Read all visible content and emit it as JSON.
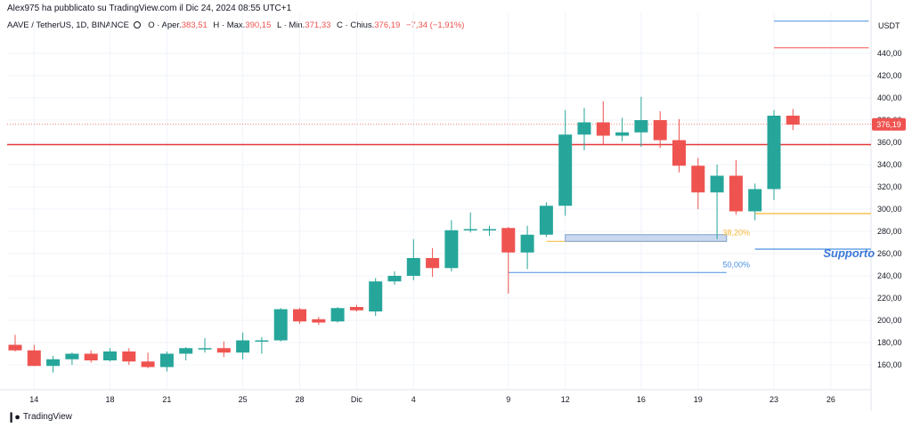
{
  "header": {
    "credit": "Alex975 ha pubblicato su TradingView.com il Dic 24, 2024 08:55 UTC+1",
    "symbol": "AAVE / TetherUS, 1D, BINANCE",
    "open_label": "O · Aper.",
    "open_value": "383,51",
    "high_label": "H · Max.",
    "high_value": "390,15",
    "low_label": "L · Min.",
    "low_value": "371,33",
    "close_label": "C · Chius.",
    "close_value": "376,19",
    "change_value": "−7,34 (−1,91%)"
  },
  "footer": {
    "brand": "TradingView",
    "logo_icon": "tradingview-logo-icon"
  },
  "colors": {
    "up": "#26a69a",
    "down": "#ef5350",
    "support_line": "#e53935",
    "fib382": "#f7b731",
    "fib50": "#4a90e2",
    "grid": "#f0f3fa"
  },
  "chart_data": {
    "type": "candlestick",
    "currency_label": "USDT",
    "ylim": [
      140,
      470
    ],
    "y_ticks": [
      {
        "v": 160,
        "label": "160,00"
      },
      {
        "v": 180,
        "label": "180,00"
      },
      {
        "v": 200,
        "label": "200,00"
      },
      {
        "v": 220,
        "label": "220,00"
      },
      {
        "v": 240,
        "label": "240,00"
      },
      {
        "v": 260,
        "label": "260,00"
      },
      {
        "v": 280,
        "label": "280,00"
      },
      {
        "v": 300,
        "label": "300,00"
      },
      {
        "v": 320,
        "label": "320,00"
      },
      {
        "v": 340,
        "label": "340,00"
      },
      {
        "v": 360,
        "label": "360,00"
      },
      {
        "v": 380,
        "label": "380,00"
      },
      {
        "v": 400,
        "label": "400,00"
      },
      {
        "v": 420,
        "label": "420,00"
      },
      {
        "v": 440,
        "label": "440,00"
      }
    ],
    "x_ticks": [
      {
        "i": 1,
        "label": "14"
      },
      {
        "i": 5,
        "label": "18"
      },
      {
        "i": 8,
        "label": "21"
      },
      {
        "i": 12,
        "label": "25"
      },
      {
        "i": 15,
        "label": "28"
      },
      {
        "i": 18,
        "label": "Dic"
      },
      {
        "i": 21,
        "label": "4"
      },
      {
        "i": 26,
        "label": "9"
      },
      {
        "i": 29,
        "label": "12"
      },
      {
        "i": 33,
        "label": "16"
      },
      {
        "i": 36,
        "label": "19"
      },
      {
        "i": 40,
        "label": "23"
      },
      {
        "i": 43,
        "label": "26"
      }
    ],
    "candles": [
      {
        "o": 178,
        "h": 187,
        "l": 172,
        "c": 173
      },
      {
        "o": 173,
        "h": 178,
        "l": 159,
        "c": 159
      },
      {
        "o": 159,
        "h": 168,
        "l": 153,
        "c": 165
      },
      {
        "o": 165,
        "h": 171,
        "l": 160,
        "c": 170
      },
      {
        "o": 170,
        "h": 173,
        "l": 162,
        "c": 164
      },
      {
        "o": 164,
        "h": 175,
        "l": 163,
        "c": 172
      },
      {
        "o": 172,
        "h": 175,
        "l": 160,
        "c": 163
      },
      {
        "o": 163,
        "h": 171,
        "l": 157,
        "c": 158
      },
      {
        "o": 158,
        "h": 172,
        "l": 154,
        "c": 170
      },
      {
        "o": 170,
        "h": 176,
        "l": 164,
        "c": 175
      },
      {
        "o": 175,
        "h": 184,
        "l": 171,
        "c": 175
      },
      {
        "o": 175,
        "h": 181,
        "l": 167,
        "c": 171
      },
      {
        "o": 171,
        "h": 189,
        "l": 165,
        "c": 182
      },
      {
        "o": 182,
        "h": 185,
        "l": 170,
        "c": 182
      },
      {
        "o": 182,
        "h": 211,
        "l": 181,
        "c": 210
      },
      {
        "o": 210,
        "h": 211,
        "l": 197,
        "c": 199
      },
      {
        "o": 201,
        "h": 203,
        "l": 196,
        "c": 198
      },
      {
        "o": 199,
        "h": 212,
        "l": 198,
        "c": 211
      },
      {
        "o": 212,
        "h": 214,
        "l": 208,
        "c": 209
      },
      {
        "o": 208,
        "h": 238,
        "l": 204,
        "c": 235
      },
      {
        "o": 235,
        "h": 244,
        "l": 232,
        "c": 240
      },
      {
        "o": 240,
        "h": 273,
        "l": 236,
        "c": 256
      },
      {
        "o": 256,
        "h": 265,
        "l": 239,
        "c": 247
      },
      {
        "o": 247,
        "h": 290,
        "l": 244,
        "c": 281
      },
      {
        "o": 281,
        "h": 297,
        "l": 279,
        "c": 282
      },
      {
        "o": 282,
        "h": 285,
        "l": 276,
        "c": 282
      },
      {
        "o": 283,
        "h": 284,
        "l": 224,
        "c": 261
      },
      {
        "o": 261,
        "h": 285,
        "l": 246,
        "c": 277
      },
      {
        "o": 277,
        "h": 306,
        "l": 275,
        "c": 303
      },
      {
        "o": 303,
        "h": 389,
        "l": 294,
        "c": 367
      },
      {
        "o": 367,
        "h": 391,
        "l": 353,
        "c": 378
      },
      {
        "o": 378,
        "h": 397,
        "l": 358,
        "c": 366
      },
      {
        "o": 366,
        "h": 382,
        "l": 361,
        "c": 369
      },
      {
        "o": 369,
        "h": 401,
        "l": 356,
        "c": 380
      },
      {
        "o": 380,
        "h": 388,
        "l": 355,
        "c": 362
      },
      {
        "o": 362,
        "h": 381,
        "l": 333,
        "c": 339
      },
      {
        "o": 339,
        "h": 346,
        "l": 300,
        "c": 315
      },
      {
        "o": 315,
        "h": 340,
        "l": 273,
        "c": 330
      },
      {
        "o": 330,
        "h": 344,
        "l": 295,
        "c": 298
      },
      {
        "o": 298,
        "h": 323,
        "l": 290,
        "c": 318
      },
      {
        "o": 318,
        "h": 389,
        "l": 308,
        "c": 384
      },
      {
        "o": 384,
        "h": 390,
        "l": 371,
        "c": 376
      }
    ],
    "current_price": {
      "value": 376.19,
      "label": "376,19"
    },
    "lines": [
      {
        "name": "resistance-support",
        "y": 358,
        "x_from": -1,
        "x_to": 45.5
      },
      {
        "name": "fib-38-2",
        "y": 296,
        "x_from": 39,
        "x_to": 45.5
      },
      {
        "name": "fib-50",
        "y": 243,
        "x_from": 26,
        "x_to": 37.5
      },
      {
        "name": "support-target",
        "y": 264,
        "x_from": 39,
        "x_to": 45.5
      },
      {
        "name": "top-blue",
        "y": 469,
        "x_from": 40,
        "x_to": 45
      },
      {
        "name": "top-red",
        "y": 445,
        "x_from": 40,
        "x_to": 45
      },
      {
        "name": "fib-left-382",
        "y": 271,
        "x_from": 28,
        "x_to": 37.5
      }
    ],
    "box": {
      "y_top": 277,
      "y_bottom": 271,
      "x_from": 29,
      "x_to": 37.5
    },
    "labels": {
      "fib382": "38,20%",
      "fib50": "50,00%",
      "support": "Supporto"
    }
  }
}
